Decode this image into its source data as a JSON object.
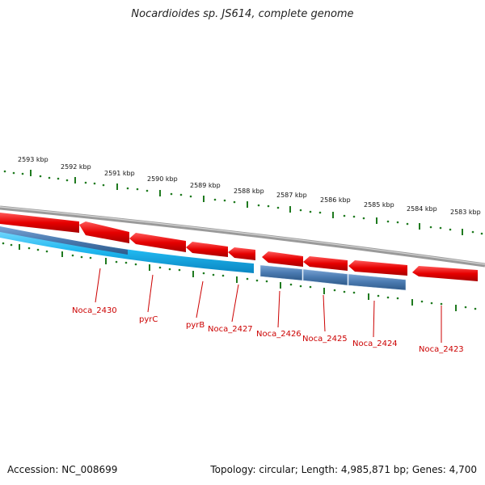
{
  "title": "Nocardioides sp. JS614, complete genome",
  "footer": {
    "accession": "Accession: NC_008699",
    "topology": "Topology: circular; Length: 4,985,871 bp; Genes: 4,700"
  },
  "colors": {
    "backbone": "#8c8c8c",
    "forward_gene": "#e60000",
    "reverse_dark": "#4a7ab0",
    "reverse_light": "#20b8f0",
    "tick": "#1f7a1f",
    "label": "#cc0000"
  },
  "scale_labels": [
    "2593 kbp",
    "2592 kbp",
    "2591 kbp",
    "2590 kbp",
    "2589 kbp",
    "2588 kbp",
    "2587 kbp",
    "2586 kbp",
    "2585 kbp",
    "2584 kbp",
    "2583 kbp"
  ],
  "gene_labels": [
    "Noca_2430",
    "pyrC",
    "pyrB",
    "Noca_2427",
    "Noca_2426",
    "Noca_2425",
    "Noca_2424",
    "Noca_2423"
  ]
}
